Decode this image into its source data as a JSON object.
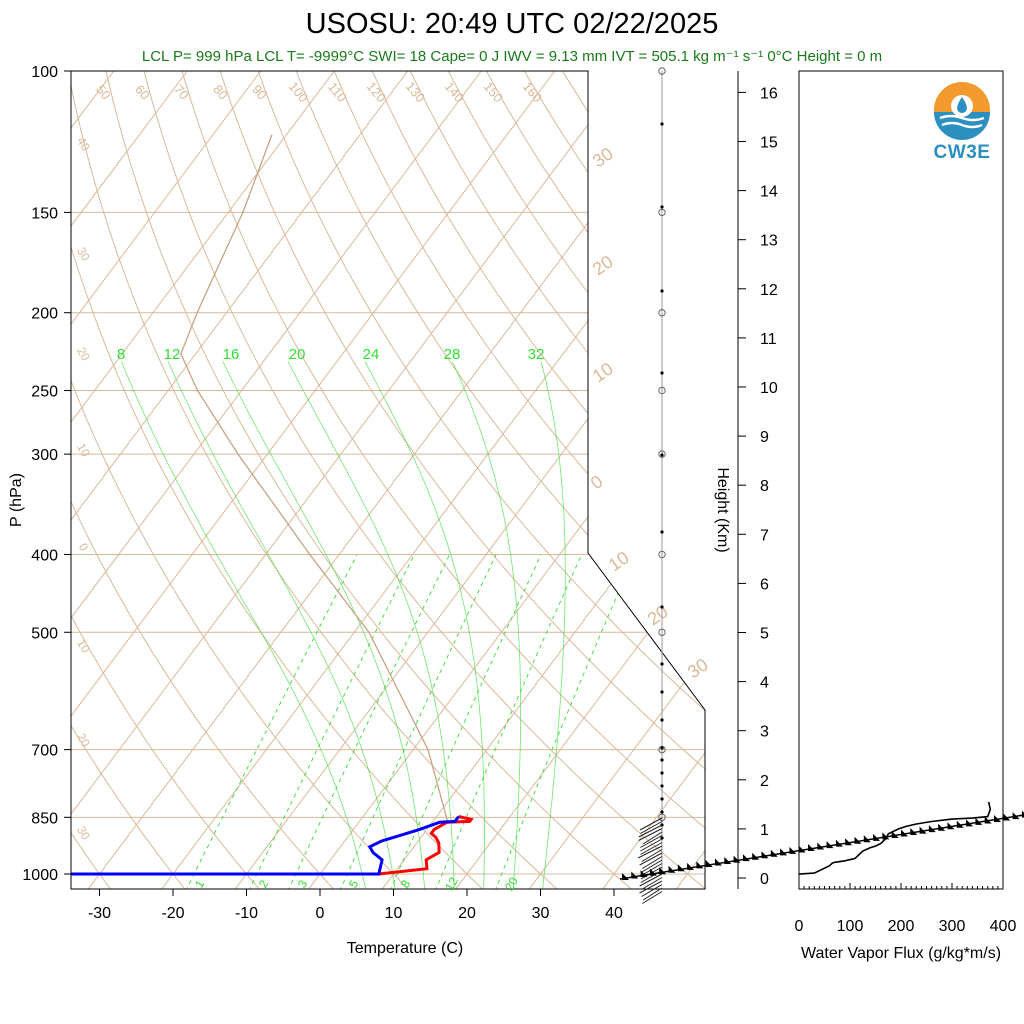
{
  "title": "USOSU: 20:49 UTC 02/22/2025",
  "stats_line": "LCL P= 999 hPa  LCL T= -9999°C  SWI= 18  Cape= 0 J  IWV = 9.13 mm  IVT = 505.1 kg m⁻¹ s⁻¹  0°C Height = 0 m",
  "logo": {
    "text": "CW3E",
    "accent": "#f29a2e",
    "water": "#2b8fbf"
  },
  "colors": {
    "dry_adiabat": "#d9b99a",
    "isotherm": "#d9b99a",
    "mixing_ratio": "#33dd33",
    "temperature": "#ff0000",
    "dewpoint": "#0000ff",
    "parcel": "#c4a484",
    "flux_line": "#000000"
  },
  "chart_data": [
    {
      "type": "line",
      "name": "skew-t",
      "xlabel": "Temperature (C)",
      "ylabel": "P (hPa)",
      "xlim": [
        -35,
        50
      ],
      "ylim": [
        1050,
        100
      ],
      "log_y": true,
      "x_ticks": [
        -30,
        -20,
        -10,
        0,
        10,
        20,
        30,
        40
      ],
      "y_ticks": [
        100,
        150,
        200,
        250,
        300,
        400,
        500,
        700,
        850,
        1000
      ],
      "isotherm_labels": [
        "-40",
        "-30",
        "-20",
        "-10",
        "0",
        "10",
        "20",
        "30"
      ],
      "dry_adiabat_labels": [
        "50",
        "60",
        "70",
        "80",
        "90",
        "100",
        "110",
        "120",
        "130",
        "140",
        "150",
        "160"
      ],
      "mixing_ratio_top_labels": [
        "8",
        "12",
        "16",
        "20",
        "24",
        "28",
        "32"
      ],
      "mixing_ratio_bottom_labels": [
        "1",
        "2",
        "3",
        "5",
        "8",
        "12",
        "20"
      ],
      "right_isotherm_labels": [
        "30",
        "20",
        "10",
        "0",
        "10",
        "20",
        "30"
      ],
      "temperature": {
        "p": [
          1000,
          1000,
          985,
          960,
          940,
          915,
          900,
          890,
          880,
          862,
          860,
          855,
          848
        ],
        "t": [
          -35,
          8,
          14,
          13,
          14,
          13,
          12,
          11,
          11,
          12,
          15,
          15,
          13
        ]
      },
      "dewpoint": {
        "p": [
          1000,
          1000,
          960,
          940,
          925,
          910,
          895,
          880,
          862,
          860,
          855,
          848
        ],
        "t": [
          -35,
          8,
          7,
          5,
          4,
          5,
          7,
          9,
          11,
          13,
          13,
          13
        ]
      },
      "parcel": {
        "p": [
          860,
          700,
          500,
          400,
          300,
          250,
          225,
          200,
          150,
          120
        ],
        "t": [
          12,
          2,
          -18,
          -34,
          -54,
          -66,
          -72,
          -74,
          -78,
          -82
        ]
      }
    },
    {
      "type": "line",
      "name": "height-axis",
      "ylabel": "Height (Km)",
      "y_ticks": [
        0,
        1,
        2,
        3,
        4,
        5,
        6,
        7,
        8,
        9,
        10,
        11,
        12,
        13,
        14,
        15,
        16
      ]
    },
    {
      "type": "line",
      "name": "water-vapor-flux",
      "xlabel": "Water Vapor Flux (g/kg*m/s)",
      "xlim": [
        0,
        400
      ],
      "x_ticks": [
        0,
        100,
        200,
        300,
        400
      ],
      "ylim": [
        -0.3,
        16.5
      ],
      "x": [
        0,
        30,
        60,
        65,
        70,
        90,
        110,
        120,
        125,
        140,
        150,
        160,
        170,
        175,
        185,
        195,
        210,
        230,
        260,
        300,
        340,
        370,
        375,
        372
      ],
      "y": [
        0.08,
        0.1,
        0.25,
        0.3,
        0.32,
        0.35,
        0.4,
        0.5,
        0.55,
        0.62,
        0.65,
        0.7,
        0.8,
        0.9,
        0.95,
        1.0,
        1.05,
        1.1,
        1.15,
        1.2,
        1.22,
        1.25,
        1.4,
        1.55
      ]
    }
  ]
}
